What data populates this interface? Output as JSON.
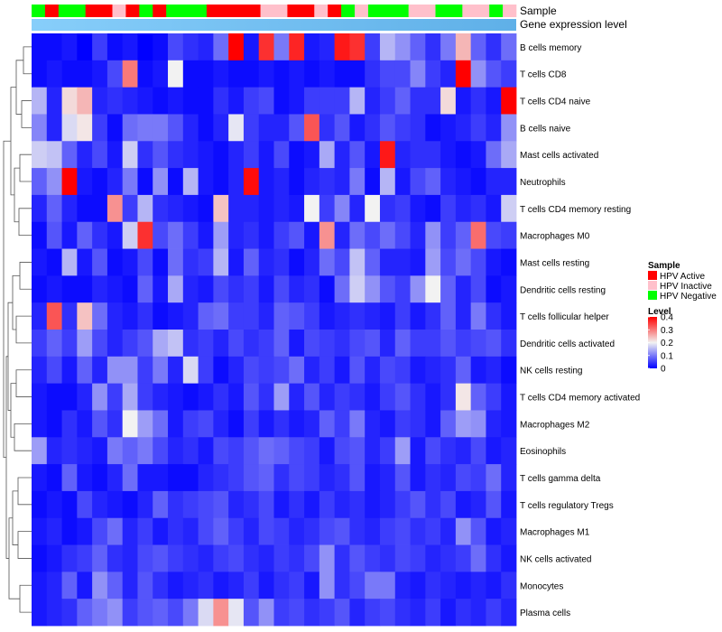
{
  "chart_data": {
    "type": "heatmap",
    "annotation_labels": [
      "Sample",
      "Gene expression level"
    ],
    "rows": [
      "B cells memory",
      "T cells CD8",
      "T cells CD4 naive",
      "B cells naive",
      "Mast cells activated",
      "Neutrophils",
      "T cells CD4 memory resting",
      "Macrophages M0",
      "Mast cells resting",
      "Dendritic cells resting",
      "T cells follicular helper",
      "Dendritic cells activated",
      "NK cells resting",
      "T cells CD4 memory activated",
      "Macrophages M2",
      "Eosinophils",
      "T cells gamma delta",
      "T cells regulatory  Tregs",
      "Macrophages M1",
      "NK cells activated",
      "Monocytes",
      "Plasma cells"
    ],
    "sample_groups": [
      "HPV Negative",
      "HPV Active",
      "HPV Negative",
      "HPV Active",
      "HPV Inactive",
      "HPV Active",
      "HPV Negative",
      "HPV Active",
      "HPV Negative",
      "HPV Active",
      "HPV Inactive",
      "HPV Active",
      "HPV Inactive",
      "HPV Active",
      "HPV Negative",
      "HPV Inactive",
      "HPV Negative",
      "HPV Inactive",
      "HPV Negative",
      "HPV Inactive",
      "HPV Negative",
      "HPV Inactive"
    ],
    "sample_widths": [
      1,
      1,
      2,
      2,
      1,
      1,
      1,
      1,
      3,
      4,
      2,
      2,
      1,
      1,
      1,
      1,
      3,
      2,
      2,
      2,
      1,
      1
    ],
    "matrix": [
      [
        0.01,
        0.01,
        0.02,
        0.0,
        0.05,
        0.01,
        0.02,
        0.0,
        0.01,
        0.06,
        0.04,
        0.03,
        0.09,
        0.4,
        0.02,
        0.36,
        0.1,
        0.37,
        0.02,
        0.03,
        0.38,
        0.36,
        0.05,
        0.15,
        0.12,
        0.08,
        0.04,
        0.1,
        0.25,
        0.08,
        0.04,
        0.09
      ],
      [
        0.01,
        0.02,
        0.01,
        0.01,
        0.02,
        0.06,
        0.3,
        0.01,
        0.02,
        0.2,
        0.01,
        0.01,
        0.02,
        0.01,
        0.01,
        0.02,
        0.01,
        0.02,
        0.01,
        0.02,
        0.01,
        0.01,
        0.04,
        0.06,
        0.06,
        0.11,
        0.05,
        0.03,
        0.4,
        0.12,
        0.07,
        0.05
      ],
      [
        0.15,
        0.03,
        0.22,
        0.25,
        0.03,
        0.04,
        0.03,
        0.02,
        0.01,
        0.02,
        0.01,
        0.01,
        0.04,
        0.02,
        0.05,
        0.06,
        0.01,
        0.02,
        0.05,
        0.05,
        0.05,
        0.15,
        0.03,
        0.05,
        0.08,
        0.04,
        0.04,
        0.22,
        0.02,
        0.04,
        0.02,
        0.4
      ],
      [
        0.11,
        0.03,
        0.18,
        0.21,
        0.05,
        0.01,
        0.09,
        0.1,
        0.1,
        0.07,
        0.03,
        0.01,
        0.03,
        0.19,
        0.05,
        0.03,
        0.03,
        0.07,
        0.33,
        0.04,
        0.07,
        0.02,
        0.04,
        0.07,
        0.05,
        0.04,
        0.01,
        0.02,
        0.03,
        0.05,
        0.03,
        0.12
      ],
      [
        0.17,
        0.16,
        0.08,
        0.03,
        0.06,
        0.02,
        0.17,
        0.04,
        0.07,
        0.04,
        0.03,
        0.02,
        0.01,
        0.03,
        0.05,
        0.02,
        0.06,
        0.01,
        0.02,
        0.14,
        0.03,
        0.07,
        0.02,
        0.38,
        0.03,
        0.04,
        0.04,
        0.02,
        0.01,
        0.02,
        0.09,
        0.14
      ],
      [
        0.08,
        0.12,
        0.4,
        0.02,
        0.01,
        0.03,
        0.1,
        0.01,
        0.12,
        0.01,
        0.15,
        0.02,
        0.01,
        0.03,
        0.39,
        0.02,
        0.03,
        0.01,
        0.03,
        0.04,
        0.03,
        0.1,
        0.01,
        0.15,
        0.02,
        0.06,
        0.08,
        0.03,
        0.02,
        0.01,
        0.03,
        0.03
      ],
      [
        0.03,
        0.08,
        0.03,
        0.01,
        0.01,
        0.28,
        0.05,
        0.15,
        0.04,
        0.03,
        0.02,
        0.01,
        0.24,
        0.03,
        0.03,
        0.02,
        0.03,
        0.02,
        0.2,
        0.05,
        0.11,
        0.03,
        0.2,
        0.04,
        0.05,
        0.02,
        0.01,
        0.05,
        0.03,
        0.04,
        0.02,
        0.17
      ],
      [
        0.01,
        0.07,
        0.02,
        0.08,
        0.04,
        0.02,
        0.17,
        0.36,
        0.06,
        0.09,
        0.05,
        0.02,
        0.13,
        0.03,
        0.04,
        0.02,
        0.05,
        0.07,
        0.02,
        0.28,
        0.03,
        0.09,
        0.06,
        0.09,
        0.06,
        0.03,
        0.12,
        0.05,
        0.08,
        0.31,
        0.06,
        0.05
      ],
      [
        0.02,
        0.01,
        0.15,
        0.02,
        0.07,
        0.01,
        0.02,
        0.06,
        0.01,
        0.09,
        0.04,
        0.05,
        0.15,
        0.02,
        0.08,
        0.03,
        0.04,
        0.01,
        0.03,
        0.09,
        0.06,
        0.16,
        0.08,
        0.03,
        0.03,
        0.02,
        0.13,
        0.06,
        0.09,
        0.06,
        0.02,
        0.01
      ],
      [
        0.01,
        0.02,
        0.01,
        0.01,
        0.03,
        0.02,
        0.01,
        0.08,
        0.02,
        0.14,
        0.03,
        0.02,
        0.06,
        0.04,
        0.05,
        0.02,
        0.06,
        0.03,
        0.04,
        0.01,
        0.09,
        0.17,
        0.12,
        0.07,
        0.05,
        0.12,
        0.2,
        0.08,
        0.03,
        0.06,
        0.01,
        0.02
      ],
      [
        0.03,
        0.33,
        0.04,
        0.24,
        0.09,
        0.03,
        0.02,
        0.04,
        0.01,
        0.02,
        0.03,
        0.08,
        0.09,
        0.05,
        0.05,
        0.03,
        0.08,
        0.07,
        0.05,
        0.02,
        0.03,
        0.04,
        0.03,
        0.02,
        0.05,
        0.02,
        0.04,
        0.08,
        0.03,
        0.1,
        0.04,
        0.02
      ],
      [
        0.05,
        0.08,
        0.05,
        0.13,
        0.06,
        0.03,
        0.05,
        0.07,
        0.14,
        0.16,
        0.04,
        0.05,
        0.03,
        0.06,
        0.04,
        0.05,
        0.08,
        0.02,
        0.06,
        0.05,
        0.04,
        0.06,
        0.07,
        0.03,
        0.08,
        0.05,
        0.05,
        0.07,
        0.05,
        0.06,
        0.07,
        0.04
      ],
      [
        0.03,
        0.06,
        0.02,
        0.08,
        0.03,
        0.12,
        0.12,
        0.05,
        0.1,
        0.03,
        0.18,
        0.05,
        0.01,
        0.03,
        0.06,
        0.05,
        0.06,
        0.09,
        0.03,
        0.05,
        0.02,
        0.07,
        0.03,
        0.06,
        0.05,
        0.02,
        0.03,
        0.04,
        0.08,
        0.02,
        0.03,
        0.01
      ],
      [
        0.02,
        0.01,
        0.01,
        0.03,
        0.12,
        0.05,
        0.14,
        0.05,
        0.03,
        0.02,
        0.01,
        0.02,
        0.04,
        0.02,
        0.07,
        0.04,
        0.13,
        0.03,
        0.07,
        0.03,
        0.05,
        0.04,
        0.02,
        0.05,
        0.07,
        0.04,
        0.02,
        0.04,
        0.21,
        0.08,
        0.05,
        0.02
      ],
      [
        0.02,
        0.01,
        0.04,
        0.02,
        0.07,
        0.04,
        0.2,
        0.13,
        0.09,
        0.02,
        0.05,
        0.06,
        0.03,
        0.01,
        0.05,
        0.02,
        0.04,
        0.02,
        0.03,
        0.08,
        0.05,
        0.1,
        0.03,
        0.02,
        0.05,
        0.04,
        0.02,
        0.08,
        0.13,
        0.12,
        0.03,
        0.02
      ],
      [
        0.13,
        0.03,
        0.04,
        0.03,
        0.02,
        0.1,
        0.08,
        0.1,
        0.06,
        0.03,
        0.04,
        0.02,
        0.06,
        0.05,
        0.07,
        0.09,
        0.08,
        0.06,
        0.05,
        0.02,
        0.06,
        0.07,
        0.03,
        0.05,
        0.13,
        0.02,
        0.06,
        0.04,
        0.03,
        0.06,
        0.02,
        0.03
      ],
      [
        0.02,
        0.01,
        0.08,
        0.02,
        0.01,
        0.03,
        0.09,
        0.02,
        0.02,
        0.01,
        0.01,
        0.03,
        0.04,
        0.05,
        0.07,
        0.08,
        0.04,
        0.06,
        0.05,
        0.03,
        0.04,
        0.07,
        0.02,
        0.03,
        0.07,
        0.02,
        0.04,
        0.03,
        0.06,
        0.05,
        0.09,
        0.03
      ],
      [
        0.01,
        0.02,
        0.01,
        0.06,
        0.03,
        0.02,
        0.01,
        0.03,
        0.08,
        0.04,
        0.05,
        0.06,
        0.07,
        0.03,
        0.04,
        0.06,
        0.02,
        0.04,
        0.02,
        0.05,
        0.03,
        0.04,
        0.02,
        0.03,
        0.05,
        0.07,
        0.04,
        0.06,
        0.02,
        0.03,
        0.07,
        0.02
      ],
      [
        0.02,
        0.03,
        0.01,
        0.02,
        0.06,
        0.09,
        0.03,
        0.05,
        0.02,
        0.04,
        0.03,
        0.06,
        0.08,
        0.05,
        0.03,
        0.06,
        0.05,
        0.03,
        0.04,
        0.06,
        0.07,
        0.04,
        0.03,
        0.05,
        0.06,
        0.04,
        0.05,
        0.03,
        0.12,
        0.07,
        0.02,
        0.03
      ],
      [
        0.01,
        0.02,
        0.04,
        0.05,
        0.08,
        0.04,
        0.03,
        0.06,
        0.07,
        0.05,
        0.04,
        0.03,
        0.05,
        0.06,
        0.04,
        0.03,
        0.05,
        0.04,
        0.06,
        0.12,
        0.04,
        0.07,
        0.05,
        0.04,
        0.06,
        0.05,
        0.03,
        0.04,
        0.05,
        0.09,
        0.04,
        0.02
      ],
      [
        0.02,
        0.03,
        0.08,
        0.02,
        0.12,
        0.08,
        0.03,
        0.07,
        0.04,
        0.02,
        0.03,
        0.04,
        0.02,
        0.03,
        0.05,
        0.02,
        0.04,
        0.05,
        0.02,
        0.12,
        0.04,
        0.06,
        0.1,
        0.1,
        0.03,
        0.02,
        0.04,
        0.03,
        0.02,
        0.03,
        0.02,
        0.04
      ],
      [
        0.02,
        0.03,
        0.04,
        0.08,
        0.1,
        0.12,
        0.05,
        0.07,
        0.08,
        0.06,
        0.1,
        0.18,
        0.28,
        0.19,
        0.07,
        0.12,
        0.05,
        0.06,
        0.04,
        0.05,
        0.07,
        0.03,
        0.05,
        0.06,
        0.04,
        0.03,
        0.05,
        0.02,
        0.04,
        0.03,
        0.05,
        0.03
      ]
    ],
    "color_scale": {
      "min": 0,
      "max": 0.4,
      "low": "#0000ff",
      "mid": "#f2f2f2",
      "high": "#ff0000",
      "mid_value": 0.2
    },
    "gene_expression_bar_colors": [
      "#87cefa",
      "#5fb0e8"
    ],
    "legend": {
      "sample_title": "Sample",
      "sample_items": [
        {
          "label": "HPV Active",
          "color": "#ff0000"
        },
        {
          "label": "HPV Inactive",
          "color": "#ffc0cb"
        },
        {
          "label": "HPV Negative",
          "color": "#00ff00"
        }
      ],
      "level_title": "Level",
      "level_ticks": [
        "0.4",
        "0.3",
        "0.2",
        "0.1",
        "0"
      ],
      "level_tick_values": [
        0.4,
        0.3,
        0.2,
        0.1,
        0
      ]
    }
  }
}
